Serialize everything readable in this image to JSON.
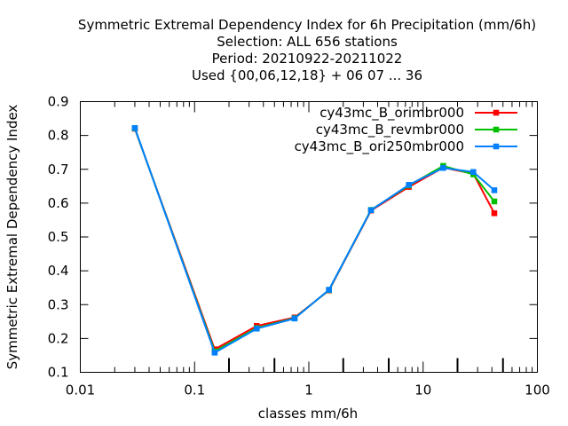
{
  "chart_data": {
    "type": "line",
    "title_lines": [
      "Symmetric Extremal Dependency Index  for 6h Precipitation (mm/6h)",
      "Selection: ALL    656 stations",
      "Period: 20210922-20211022",
      "Used {00,06,12,18} + 06 07 ... 36"
    ],
    "xlabel": "classes mm/6h",
    "ylabel": "Symmetric Extremal Dependency Index",
    "xscale": "log",
    "xlim": [
      0.01,
      100
    ],
    "ylim": [
      0.1,
      0.9
    ],
    "x_ticks": [
      {
        "value": 0.01,
        "label": "0.01"
      },
      {
        "value": 0.1,
        "label": "0.1"
      },
      {
        "value": 1,
        "label": "1"
      },
      {
        "value": 10,
        "label": "10"
      },
      {
        "value": 100,
        "label": "100"
      }
    ],
    "x_minor_ticks": [
      0.2,
      0.5,
      2,
      5,
      20,
      50
    ],
    "y_ticks": [
      {
        "value": 0.1,
        "label": "0.1"
      },
      {
        "value": 0.2,
        "label": "0.2"
      },
      {
        "value": 0.3,
        "label": "0.3"
      },
      {
        "value": 0.4,
        "label": "0.4"
      },
      {
        "value": 0.5,
        "label": "0.5"
      },
      {
        "value": 0.6,
        "label": "0.6"
      },
      {
        "value": 0.7,
        "label": "0.7"
      },
      {
        "value": 0.8,
        "label": "0.8"
      },
      {
        "value": 0.9,
        "label": "0.9"
      }
    ],
    "grid": false,
    "legend_position": "top-right",
    "series": [
      {
        "name": "cy43mc_B_orimbr000",
        "color": "#ff0000",
        "x": [
          0.03,
          0.15,
          0.35,
          0.75,
          1.5,
          3.5,
          7.5,
          15,
          27.5,
          42
        ],
        "y": [
          0.82,
          0.168,
          0.237,
          0.262,
          0.342,
          0.578,
          0.648,
          0.705,
          0.687,
          0.57
        ]
      },
      {
        "name": "cy43mc_B_revmbr000",
        "color": "#00c000",
        "x": [
          0.03,
          0.15,
          0.35,
          0.75,
          1.5,
          3.5,
          7.5,
          15,
          27.5,
          42
        ],
        "y": [
          0.821,
          0.162,
          0.231,
          0.26,
          0.343,
          0.58,
          0.652,
          0.71,
          0.685,
          0.605
        ]
      },
      {
        "name": "cy43mc_B_ori250mbr000",
        "color": "#0080ff",
        "x": [
          0.03,
          0.15,
          0.35,
          0.75,
          1.5,
          3.5,
          7.5,
          15,
          27.5,
          42
        ],
        "y": [
          0.822,
          0.158,
          0.229,
          0.259,
          0.344,
          0.579,
          0.654,
          0.704,
          0.692,
          0.638
        ]
      }
    ]
  }
}
